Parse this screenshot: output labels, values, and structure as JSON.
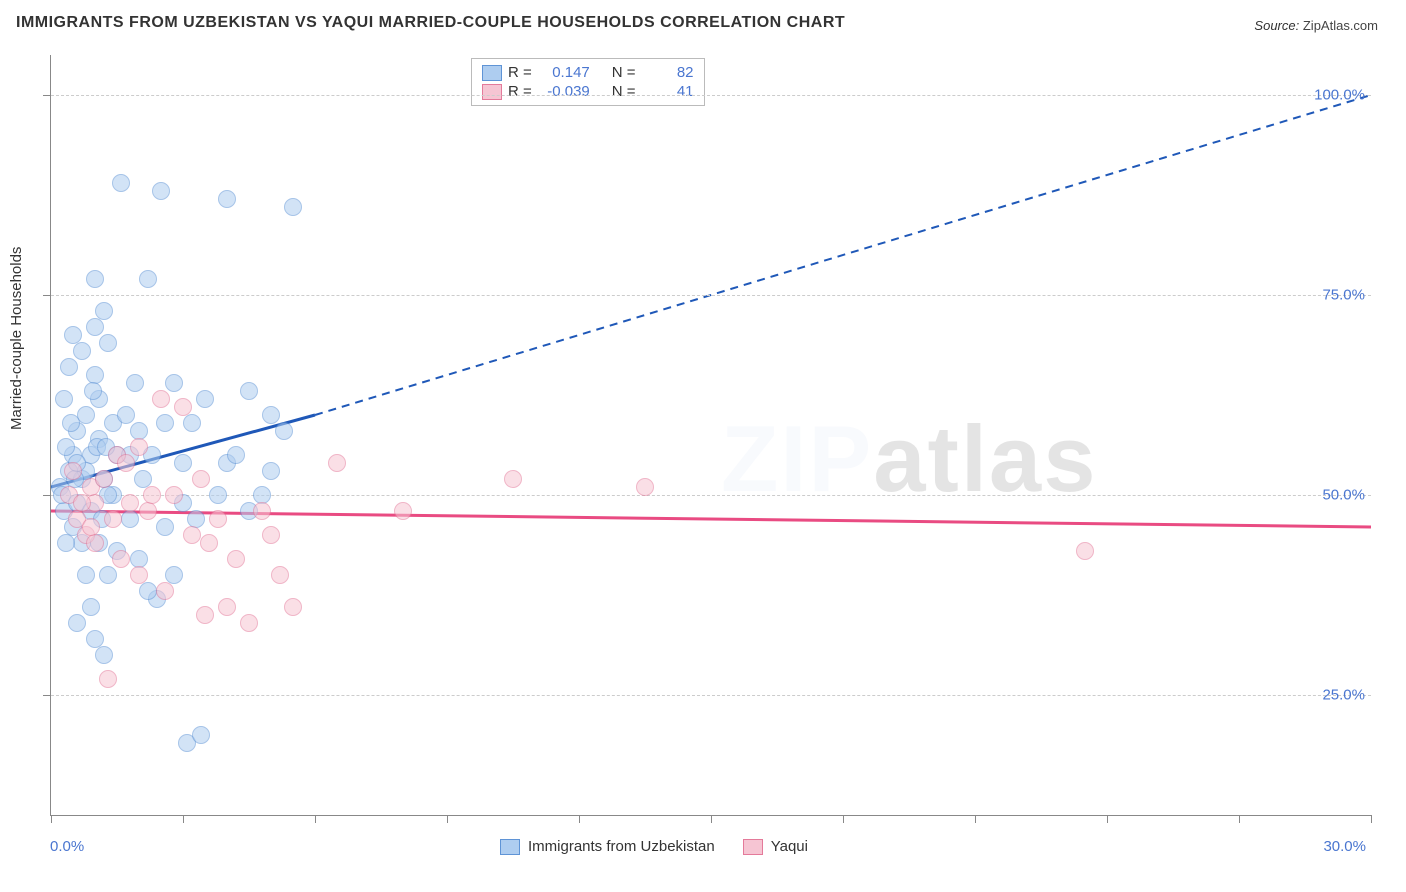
{
  "title": "IMMIGRANTS FROM UZBEKISTAN VS YAQUI MARRIED-COUPLE HOUSEHOLDS CORRELATION CHART",
  "source_label": "Source:",
  "source_value": "ZipAtlas.com",
  "ylabel": "Married-couple Households",
  "watermark_a": "ZIP",
  "watermark_b": "atlas",
  "chart": {
    "type": "scatter",
    "xlim": [
      0,
      30
    ],
    "ylim": [
      10,
      105
    ],
    "x_ticks": [
      0,
      3,
      6,
      9,
      12,
      15,
      18,
      21,
      24,
      27,
      30
    ],
    "y_ticks": [
      25,
      50,
      75,
      100
    ],
    "x_tick_labels": {
      "0": "0.0%",
      "30": "30.0%"
    },
    "y_tick_labels": {
      "25": "25.0%",
      "50": "50.0%",
      "75": "75.0%",
      "100": "100.0%"
    },
    "grid_color": "#cccccc",
    "axis_color": "#888888",
    "background_color": "#ffffff",
    "series": [
      {
        "name": "Immigrants from Uzbekistan",
        "fill": "#aecdf0",
        "stroke": "#5f94d6",
        "line_color": "#1f58b8",
        "R": "0.147",
        "N": "82",
        "trend": {
          "x1": 0,
          "y1": 51,
          "x2_solid": 6,
          "y2_solid": 60,
          "x2": 30,
          "y2": 100,
          "dashed_after_solid": true
        },
        "points": [
          [
            0.2,
            51
          ],
          [
            0.3,
            48
          ],
          [
            0.4,
            53
          ],
          [
            0.5,
            55
          ],
          [
            0.5,
            46
          ],
          [
            0.6,
            58
          ],
          [
            0.6,
            49
          ],
          [
            0.7,
            52
          ],
          [
            0.7,
            44
          ],
          [
            0.8,
            60
          ],
          [
            0.8,
            40
          ],
          [
            0.9,
            55
          ],
          [
            0.9,
            48
          ],
          [
            1.0,
            71
          ],
          [
            1.0,
            65
          ],
          [
            1.0,
            77
          ],
          [
            1.1,
            62
          ],
          [
            1.1,
            57
          ],
          [
            1.2,
            73
          ],
          [
            1.2,
            52
          ],
          [
            1.3,
            69
          ],
          [
            1.3,
            40
          ],
          [
            1.4,
            59
          ],
          [
            1.4,
            50
          ],
          [
            1.5,
            55
          ],
          [
            1.5,
            43
          ],
          [
            1.6,
            89
          ],
          [
            1.7,
            60
          ],
          [
            1.8,
            47
          ],
          [
            1.8,
            55
          ],
          [
            1.9,
            64
          ],
          [
            2.0,
            58
          ],
          [
            2.0,
            42
          ],
          [
            2.1,
            52
          ],
          [
            2.2,
            77
          ],
          [
            2.3,
            55
          ],
          [
            2.4,
            37
          ],
          [
            2.5,
            88
          ],
          [
            2.6,
            59
          ],
          [
            2.6,
            46
          ],
          [
            2.8,
            64
          ],
          [
            2.8,
            40
          ],
          [
            3.0,
            54
          ],
          [
            3.0,
            49
          ],
          [
            3.1,
            19
          ],
          [
            3.2,
            59
          ],
          [
            3.3,
            47
          ],
          [
            3.4,
            20
          ],
          [
            3.5,
            62
          ],
          [
            3.8,
            50
          ],
          [
            4.0,
            54
          ],
          [
            4.0,
            87
          ],
          [
            4.2,
            55
          ],
          [
            4.5,
            48
          ],
          [
            4.5,
            63
          ],
          [
            4.8,
            50
          ],
          [
            5.0,
            60
          ],
          [
            5.0,
            53
          ],
          [
            5.3,
            58
          ],
          [
            5.5,
            86
          ],
          [
            1.0,
            32
          ],
          [
            0.6,
            34
          ],
          [
            1.2,
            30
          ],
          [
            0.4,
            66
          ],
          [
            0.3,
            62
          ],
          [
            0.5,
            70
          ],
          [
            0.7,
            68
          ],
          [
            0.9,
            36
          ],
          [
            1.1,
            44
          ],
          [
            1.3,
            50
          ],
          [
            0.8,
            53
          ],
          [
            2.2,
            38
          ],
          [
            0.25,
            50
          ],
          [
            0.35,
            56
          ],
          [
            0.45,
            59
          ],
          [
            0.55,
            52
          ],
          [
            0.35,
            44
          ],
          [
            0.6,
            54
          ],
          [
            1.05,
            56
          ],
          [
            0.95,
            63
          ],
          [
            1.15,
            47
          ],
          [
            1.25,
            56
          ]
        ]
      },
      {
        "name": "Yaqui",
        "fill": "#f6c5d3",
        "stroke": "#e47a9a",
        "line_color": "#e94b82",
        "R": "-0.039",
        "N": "41",
        "trend": {
          "x1": 0,
          "y1": 48,
          "x2_solid": 30,
          "y2_solid": 46,
          "x2": 30,
          "y2": 46,
          "dashed_after_solid": false
        },
        "points": [
          [
            0.4,
            50
          ],
          [
            0.6,
            47
          ],
          [
            0.8,
            45
          ],
          [
            0.9,
            51
          ],
          [
            1.0,
            44
          ],
          [
            1.2,
            52
          ],
          [
            1.3,
            27
          ],
          [
            1.5,
            55
          ],
          [
            1.6,
            42
          ],
          [
            1.8,
            49
          ],
          [
            2.0,
            40
          ],
          [
            2.0,
            56
          ],
          [
            2.2,
            48
          ],
          [
            2.5,
            62
          ],
          [
            2.6,
            38
          ],
          [
            2.8,
            50
          ],
          [
            3.0,
            61
          ],
          [
            3.2,
            45
          ],
          [
            3.4,
            52
          ],
          [
            3.5,
            35
          ],
          [
            3.6,
            44
          ],
          [
            3.8,
            47
          ],
          [
            4.0,
            36
          ],
          [
            4.2,
            42
          ],
          [
            4.5,
            34
          ],
          [
            4.8,
            48
          ],
          [
            5.0,
            45
          ],
          [
            5.2,
            40
          ],
          [
            5.5,
            36
          ],
          [
            6.5,
            54
          ],
          [
            8.0,
            48
          ],
          [
            10.5,
            52
          ],
          [
            13.5,
            51
          ],
          [
            23.5,
            43
          ],
          [
            1.0,
            49
          ],
          [
            1.4,
            47
          ],
          [
            1.7,
            54
          ],
          [
            2.3,
            50
          ],
          [
            0.7,
            49
          ],
          [
            0.5,
            53
          ],
          [
            0.9,
            46
          ]
        ]
      }
    ]
  },
  "legend_rn": {
    "R_label": "R =",
    "N_label": "N ="
  },
  "bottom_legend": {
    "items": [
      "Immigrants from Uzbekistan",
      "Yaqui"
    ]
  }
}
